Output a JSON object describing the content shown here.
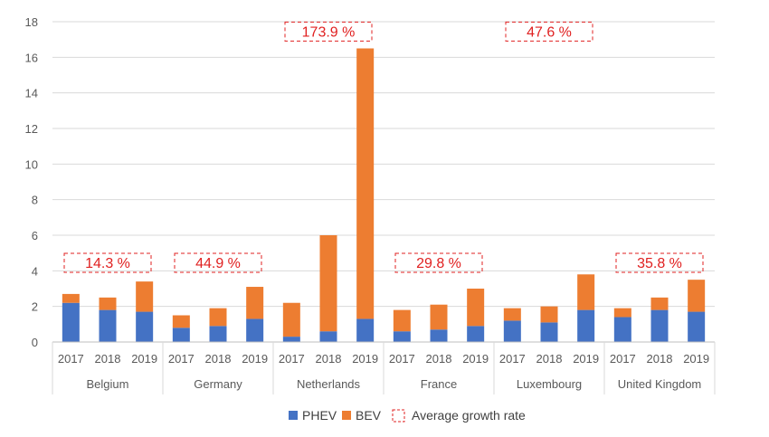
{
  "chart_data": {
    "type": "bar",
    "stacked": true,
    "title": "",
    "xlabel": "",
    "ylabel": "",
    "ylim": [
      0,
      18
    ],
    "yticks": [
      0,
      2,
      4,
      6,
      8,
      10,
      12,
      14,
      16,
      18
    ],
    "grid": true,
    "legend_position": "bottom",
    "groups": [
      {
        "name": "Belgium",
        "growth_label": "14.3 %",
        "years": [
          "2017",
          "2018",
          "2019"
        ],
        "phev": [
          2.2,
          1.8,
          1.7
        ],
        "bev": [
          0.5,
          0.7,
          1.7
        ]
      },
      {
        "name": "Germany",
        "growth_label": "44.9 %",
        "years": [
          "2017",
          "2018",
          "2019"
        ],
        "phev": [
          0.8,
          0.9,
          1.3
        ],
        "bev": [
          0.7,
          1.0,
          1.8
        ]
      },
      {
        "name": "Netherlands",
        "growth_label": "173.9 %",
        "years": [
          "2017",
          "2018",
          "2019"
        ],
        "phev": [
          0.3,
          0.6,
          1.3
        ],
        "bev": [
          1.9,
          5.4,
          15.2
        ]
      },
      {
        "name": "France",
        "growth_label": "29.8 %",
        "years": [
          "2017",
          "2018",
          "2019"
        ],
        "phev": [
          0.6,
          0.7,
          0.9
        ],
        "bev": [
          1.2,
          1.4,
          2.1
        ]
      },
      {
        "name": "Luxembourg",
        "growth_label": "47.6 %",
        "years": [
          "2017",
          "2018",
          "2019"
        ],
        "phev": [
          1.2,
          1.1,
          1.8
        ],
        "bev": [
          0.7,
          0.9,
          2.0
        ]
      },
      {
        "name": "United Kingdom",
        "growth_label": "35.8 %",
        "years": [
          "2017",
          "2018",
          "2019"
        ],
        "phev": [
          1.4,
          1.8,
          1.7
        ],
        "bev": [
          0.5,
          0.7,
          1.8
        ]
      }
    ],
    "series": [
      {
        "key": "phev",
        "name": "PHEV",
        "color": "#4472C4"
      },
      {
        "key": "bev",
        "name": "BEV",
        "color": "#ED7D31"
      }
    ],
    "legend": {
      "phev_label": "PHEV",
      "bev_label": "BEV",
      "growth_label": "Average growth rate"
    },
    "colors": {
      "phev": "#4472C4",
      "bev": "#ED7D31",
      "growth_box": "#E02020",
      "grid": "#D9D9D9",
      "axis_text": "#595959"
    }
  }
}
